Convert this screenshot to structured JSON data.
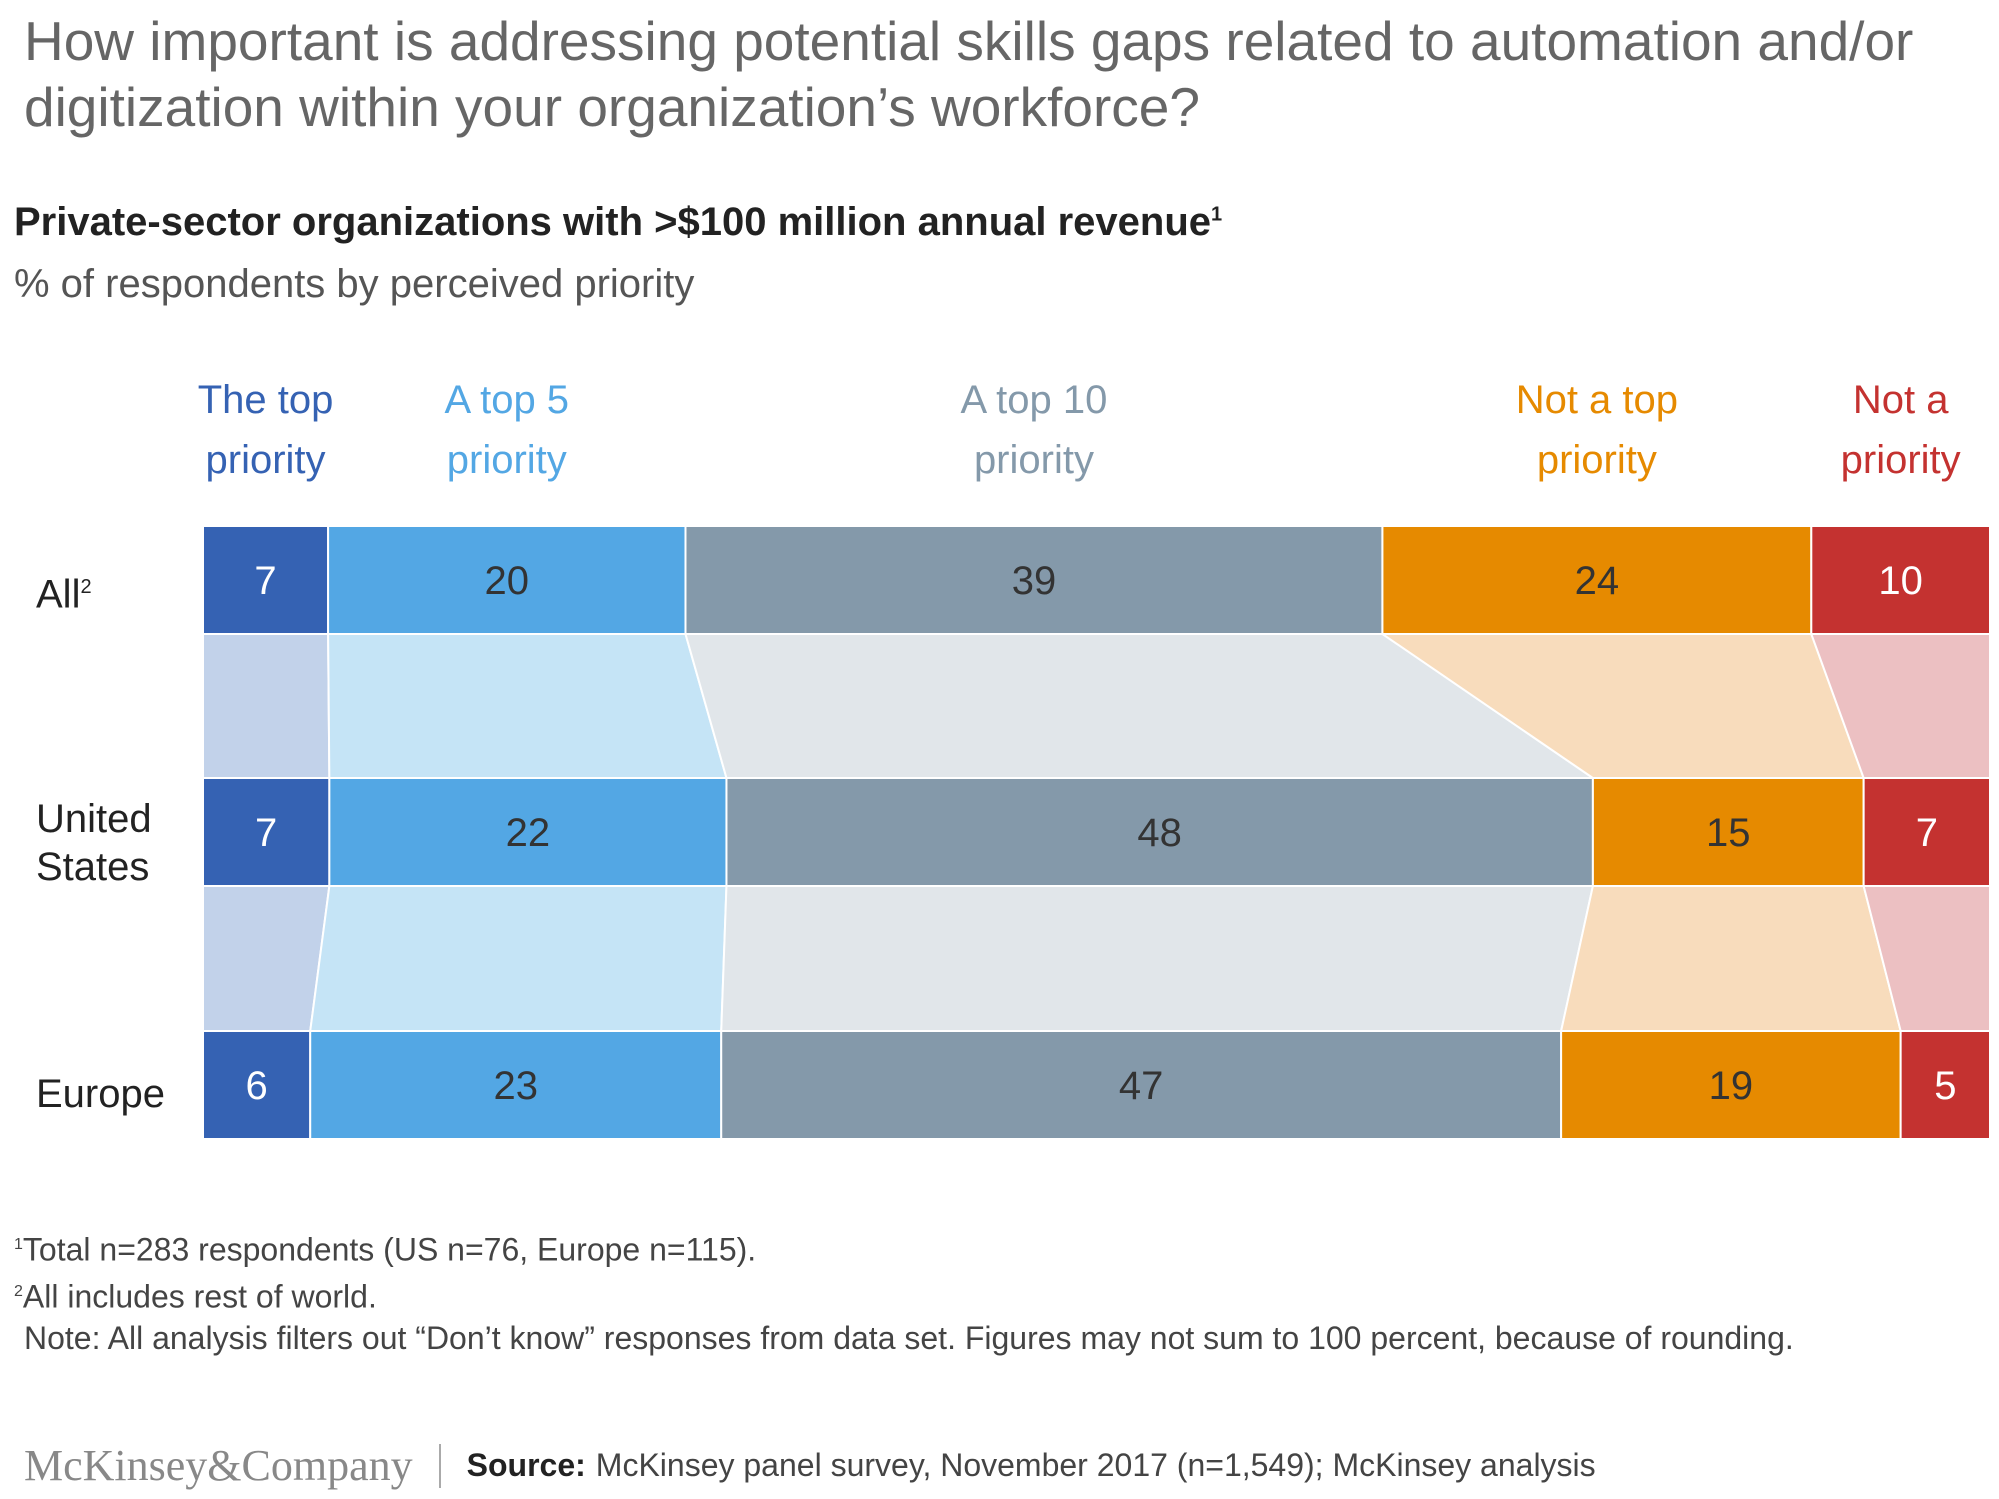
{
  "title": "How important is addressing potential skills gaps related to automation and/or digitization within your organization’s workforce?",
  "subtitle": "Private-sector organizations with >$100 million annual revenue",
  "subtitle_sup": "1",
  "unit": "% of respondents by perceived priority",
  "chart_data": {
    "type": "bar",
    "stacked": true,
    "orientation": "horizontal",
    "categories": [
      "All",
      "United States",
      "Europe"
    ],
    "category_superscripts": [
      "2",
      "",
      ""
    ],
    "series": [
      {
        "name": "The top priority",
        "values": [
          7,
          7,
          6
        ],
        "color": "#3562b3",
        "light_color": "#c2d2ea",
        "label_color": "#3562b3"
      },
      {
        "name": "A top 5 priority",
        "values": [
          20,
          22,
          23
        ],
        "color": "#53a7e4",
        "light_color": "#c5e4f6",
        "label_color": "#53a7e4"
      },
      {
        "name": "A top 10 priority",
        "values": [
          39,
          48,
          47
        ],
        "color": "#8499aa",
        "light_color": "#e1e6ea",
        "label_color": "#8499aa"
      },
      {
        "name": "Not a top priority",
        "values": [
          24,
          15,
          19
        ],
        "color": "#e68a00",
        "light_color": "#f8dcbc",
        "label_color": "#e68a00"
      },
      {
        "name": "Not a priority",
        "values": [
          10,
          7,
          5
        ],
        "color": "#c43230",
        "light_color": "#ecc0c2",
        "label_color": "#c43230"
      }
    ],
    "category_header_lines": [
      [
        "The top",
        "priority"
      ],
      [
        "A top 5",
        "priority"
      ],
      [
        "A top 10",
        "priority"
      ],
      [
        "Not a top",
        "priority"
      ],
      [
        "Not a",
        "priority"
      ]
    ],
    "label_text_colors": [
      "#ffffff",
      "#333333",
      "#333333",
      "#333333",
      "#ffffff"
    ]
  },
  "footnotes": {
    "f1_sup": "1",
    "f1": "Total n=283 respondents (US n=76, Europe n=115).",
    "f2_sup": "2",
    "f2": "All includes rest of world.",
    "note": "Note: All analysis filters out “Don’t know” responses from data set. Figures may not sum to 100 percent, because of rounding."
  },
  "footer": {
    "logo": "McKinsey&Company",
    "source_label": "Source:",
    "source": "McKinsey panel survey, November 2017 (n=1,549); McKinsey analysis"
  }
}
